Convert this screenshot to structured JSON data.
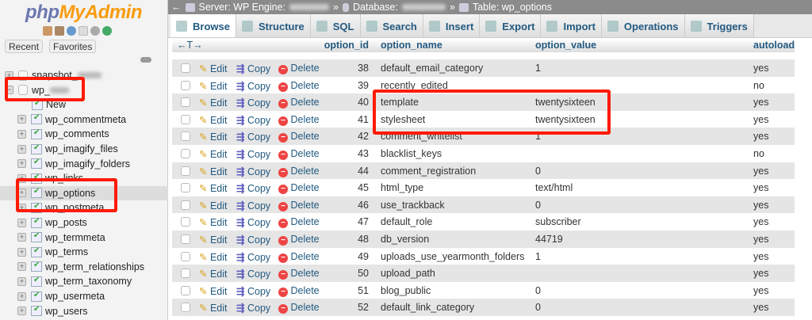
{
  "logo": {
    "part1": "php",
    "part2": "MyAdmin"
  },
  "sidebar": {
    "recent": "Recent",
    "favorites": "Favorites",
    "icons": [
      "home-icon",
      "logout-icon",
      "help-icon",
      "docs-icon",
      "settings-icon",
      "reload-icon"
    ],
    "databases": [
      {
        "label": "snapshot_"
      },
      {
        "label": "wp_"
      }
    ],
    "new_label": "New",
    "tables": [
      "wp_commentmeta",
      "wp_comments",
      "wp_imagify_files",
      "wp_imagify_folders",
      "wp_links",
      "wp_options",
      "wp_postmeta",
      "wp_posts",
      "wp_termmeta",
      "wp_terms",
      "wp_term_relationships",
      "wp_term_taxonomy",
      "wp_usermeta",
      "wp_users"
    ],
    "selected_table": "wp_options"
  },
  "breadcrumb": {
    "server": "Server: WP Engine:",
    "database": "Database:",
    "table": "Table: wp_options",
    "sep": "»"
  },
  "tabs": [
    "Browse",
    "Structure",
    "SQL",
    "Search",
    "Insert",
    "Export",
    "Import",
    "Operations",
    "Triggers"
  ],
  "active_tab": "Browse",
  "table": {
    "columns": [
      "option_id",
      "option_name",
      "option_value",
      "autoload"
    ],
    "actions": {
      "edit": "Edit",
      "copy": "Copy",
      "delete": "Delete"
    },
    "rows": [
      {
        "id": "38",
        "name": "default_email_category",
        "value": "1",
        "autoload": "yes"
      },
      {
        "id": "39",
        "name": "recently_edited",
        "value": "",
        "autoload": "no"
      },
      {
        "id": "40",
        "name": "template",
        "value": "twentysixteen",
        "autoload": "yes"
      },
      {
        "id": "41",
        "name": "stylesheet",
        "value": "twentysixteen",
        "autoload": "yes"
      },
      {
        "id": "42",
        "name": "comment_whitelist",
        "value": "1",
        "autoload": "yes"
      },
      {
        "id": "43",
        "name": "blacklist_keys",
        "value": "",
        "autoload": "no"
      },
      {
        "id": "44",
        "name": "comment_registration",
        "value": "0",
        "autoload": "yes"
      },
      {
        "id": "45",
        "name": "html_type",
        "value": "text/html",
        "autoload": "yes"
      },
      {
        "id": "46",
        "name": "use_trackback",
        "value": "0",
        "autoload": "yes"
      },
      {
        "id": "47",
        "name": "default_role",
        "value": "subscriber",
        "autoload": "yes"
      },
      {
        "id": "48",
        "name": "db_version",
        "value": "44719",
        "autoload": "yes"
      },
      {
        "id": "49",
        "name": "uploads_use_yearmonth_folders",
        "value": "1",
        "autoload": "yes"
      },
      {
        "id": "50",
        "name": "upload_path",
        "value": "",
        "autoload": "yes"
      },
      {
        "id": "51",
        "name": "blog_public",
        "value": "0",
        "autoload": "yes"
      },
      {
        "id": "52",
        "name": "default_link_category",
        "value": "0",
        "autoload": "yes"
      }
    ]
  },
  "highlight_color": "#ff1a00"
}
